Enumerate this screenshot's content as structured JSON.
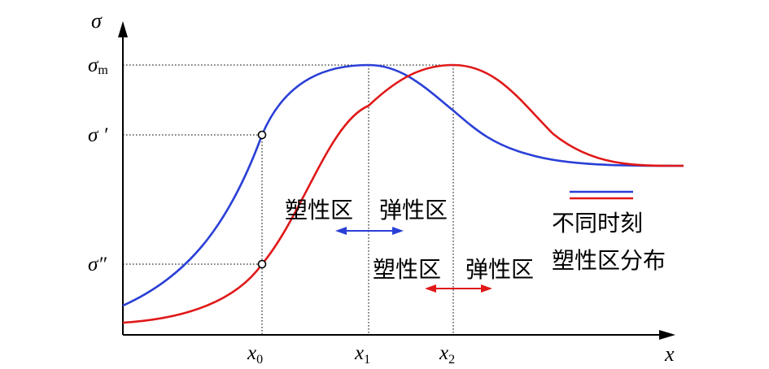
{
  "axes": {
    "y_label": "σ",
    "x_label": "x"
  },
  "y_ticks": {
    "sigma_m": {
      "base": "σ",
      "sub": "m"
    },
    "sigma_prime": "σ ′",
    "sigma_double_prime": "σ″"
  },
  "x_ticks": {
    "x0": {
      "base": "x",
      "sub": "0"
    },
    "x1": {
      "base": "x",
      "sub": "1"
    },
    "x2": {
      "base": "x",
      "sub": "2"
    }
  },
  "zones": {
    "blue": {
      "plastic": "塑性区",
      "elastic": "弹性区"
    },
    "red": {
      "plastic": "塑性区",
      "elastic": "弹性区"
    }
  },
  "legend": {
    "line1": "不同时刻",
    "line2": "塑性区分布"
  },
  "colors": {
    "blue_curve": "#2a3fd6",
    "red_curve": "#e01818",
    "axis": "#000000"
  }
}
